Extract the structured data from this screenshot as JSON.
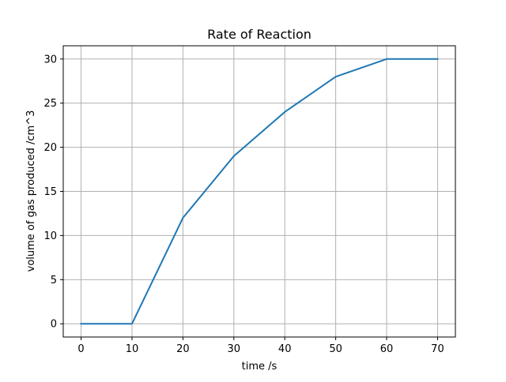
{
  "chart_data": {
    "type": "line",
    "title": "Rate of Reaction",
    "xlabel": "time /s",
    "ylabel": "volume of gas produced /cm^3",
    "x": [
      0,
      10,
      20,
      30,
      40,
      50,
      60,
      70
    ],
    "series": [
      {
        "values": [
          0,
          0,
          12,
          19,
          24,
          28,
          30,
          30
        ],
        "color": "#1f77b4"
      }
    ],
    "xticks": [
      0,
      10,
      20,
      30,
      40,
      50,
      60,
      70
    ],
    "yticks": [
      0,
      5,
      10,
      15,
      20,
      25,
      30
    ],
    "xlim": [
      -3.5,
      73.5
    ],
    "ylim": [
      -1.5,
      31.5
    ],
    "grid": true,
    "legend": "none"
  },
  "colors": {
    "grid": "#b0b0b0",
    "axes": "#000000",
    "background": "#ffffff"
  }
}
